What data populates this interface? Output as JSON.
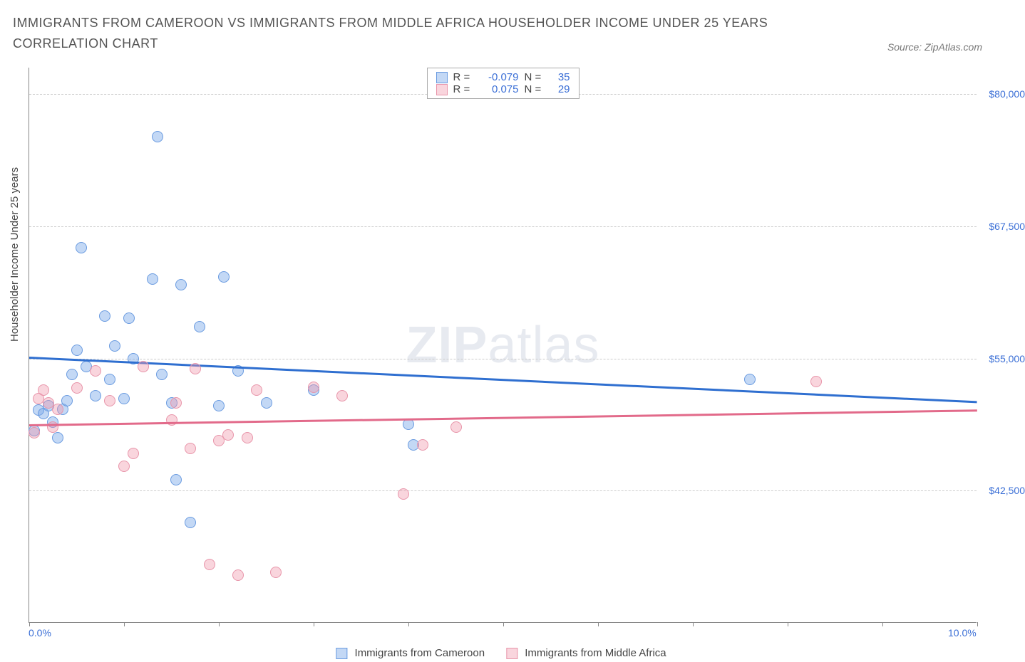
{
  "title": "IMMIGRANTS FROM CAMEROON VS IMMIGRANTS FROM MIDDLE AFRICA HOUSEHOLDER INCOME UNDER 25 YEARS CORRELATION CHART",
  "source_label": "Source: ZipAtlas.com",
  "watermark_bold": "ZIP",
  "watermark_rest": "atlas",
  "y_axis_title": "Householder Income Under 25 years",
  "chart": {
    "type": "scatter",
    "background_color": "#ffffff",
    "grid_color": "#cccccc",
    "axis_color": "#888888",
    "label_color": "#3b6fd6",
    "xlim": [
      0,
      10
    ],
    "ylim": [
      30000,
      82500
    ],
    "x_ticks": [
      0,
      1,
      2,
      3,
      4,
      5,
      6,
      7,
      8,
      9,
      10
    ],
    "x_tick_labels_shown": {
      "0": "0.0%",
      "10": "10.0%"
    },
    "y_ticks": [
      42500,
      55000,
      67500,
      80000
    ],
    "y_tick_labels": [
      "$42,500",
      "$55,000",
      "$67,500",
      "$80,000"
    ],
    "series": [
      {
        "name": "Immigrants from Cameroon",
        "fill_color": "rgba(122,168,232,0.45)",
        "stroke_color": "#6a9be0",
        "trend_color": "#2f6fd0",
        "marker_radius": 8,
        "r_value": "-0.079",
        "n_value": "35",
        "r_label": "R =",
        "n_label": "N =",
        "points": [
          [
            0.05,
            48200
          ],
          [
            0.1,
            50100
          ],
          [
            0.15,
            49800
          ],
          [
            0.2,
            50500
          ],
          [
            0.25,
            49000
          ],
          [
            0.3,
            47500
          ],
          [
            0.35,
            50200
          ],
          [
            0.4,
            51000
          ],
          [
            0.45,
            53500
          ],
          [
            0.5,
            55800
          ],
          [
            0.55,
            65500
          ],
          [
            0.6,
            54200
          ],
          [
            0.7,
            51500
          ],
          [
            0.8,
            59000
          ],
          [
            0.85,
            53000
          ],
          [
            0.9,
            56200
          ],
          [
            1.0,
            51200
          ],
          [
            1.05,
            58800
          ],
          [
            1.1,
            55000
          ],
          [
            1.3,
            62500
          ],
          [
            1.35,
            76000
          ],
          [
            1.4,
            53500
          ],
          [
            1.5,
            50800
          ],
          [
            1.55,
            43500
          ],
          [
            1.6,
            62000
          ],
          [
            1.7,
            39500
          ],
          [
            1.8,
            58000
          ],
          [
            2.0,
            50500
          ],
          [
            2.05,
            62700
          ],
          [
            2.2,
            53800
          ],
          [
            2.5,
            50800
          ],
          [
            3.0,
            52000
          ],
          [
            4.0,
            48800
          ],
          [
            4.05,
            46800
          ],
          [
            7.6,
            53000
          ]
        ],
        "trend": {
          "x1": 0,
          "y1": 55200,
          "x2": 10,
          "y2": 51000
        }
      },
      {
        "name": "Immigrants from Middle Africa",
        "fill_color": "rgba(240,150,170,0.40)",
        "stroke_color": "#e895aa",
        "trend_color": "#e26a8a",
        "marker_radius": 8,
        "r_value": "0.075",
        "n_value": "29",
        "r_label": "R =",
        "n_label": "N =",
        "points": [
          [
            0.05,
            48000
          ],
          [
            0.1,
            51200
          ],
          [
            0.15,
            52000
          ],
          [
            0.2,
            50800
          ],
          [
            0.25,
            48500
          ],
          [
            0.3,
            50200
          ],
          [
            0.5,
            52200
          ],
          [
            0.7,
            53800
          ],
          [
            0.85,
            51000
          ],
          [
            1.0,
            44800
          ],
          [
            1.1,
            46000
          ],
          [
            1.2,
            54200
          ],
          [
            1.5,
            49200
          ],
          [
            1.55,
            50800
          ],
          [
            1.7,
            46500
          ],
          [
            1.75,
            54000
          ],
          [
            1.9,
            35500
          ],
          [
            2.0,
            47200
          ],
          [
            2.1,
            47800
          ],
          [
            2.2,
            34500
          ],
          [
            2.3,
            47500
          ],
          [
            2.4,
            52000
          ],
          [
            2.6,
            34800
          ],
          [
            3.0,
            52300
          ],
          [
            3.3,
            51500
          ],
          [
            3.95,
            42200
          ],
          [
            4.15,
            46800
          ],
          [
            4.5,
            48500
          ],
          [
            8.3,
            52800
          ]
        ],
        "trend": {
          "x1": 0,
          "y1": 48800,
          "x2": 10,
          "y2": 50200
        }
      }
    ]
  },
  "legend_bottom": {
    "item1_label": "Immigrants from Cameroon",
    "item2_label": "Immigrants from Middle Africa"
  }
}
